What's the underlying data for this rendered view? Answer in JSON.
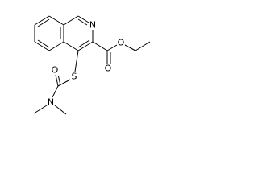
{
  "atoms": {
    "ring_n": "N",
    "ester_carbonyl_o": "O",
    "ester_o": "O",
    "s": "S",
    "amide_o": "O",
    "amide_n": "N"
  }
}
